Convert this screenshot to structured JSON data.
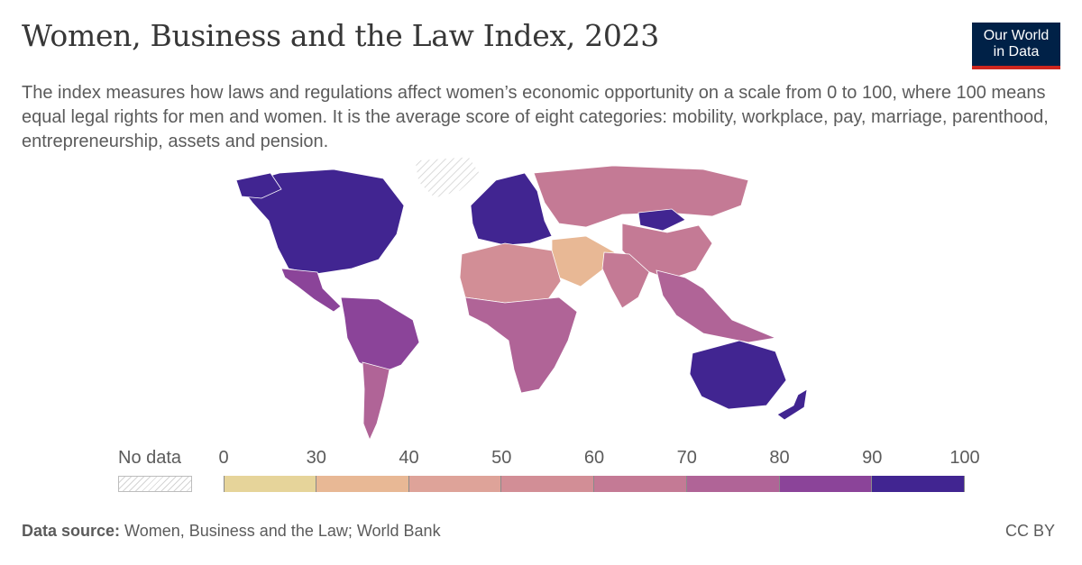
{
  "header": {
    "title": "Women, Business and the Law Index, 2023",
    "subtitle": "The index measures how laws and regulations affect women’s economic opportunity on a scale from 0 to 100, where 100 means equal legal rights for men and women. It is the average score of eight categories: mobility, workplace, pay, marriage, parenthood, entrepreneurship, assets and pension.",
    "logo_line1": "Our World",
    "logo_line2": "in Data",
    "logo_color": "#002147",
    "logo_accent": "#ce261e"
  },
  "legend": {
    "no_data_label": "No data",
    "ticks": [
      "0",
      "30",
      "40",
      "50",
      "60",
      "70",
      "80",
      "90",
      "100"
    ],
    "bins": [
      {
        "from": 0,
        "to": 30,
        "color": "#e6d49a"
      },
      {
        "from": 30,
        "to": 40,
        "color": "#e8b895"
      },
      {
        "from": 40,
        "to": 50,
        "color": "#dea399"
      },
      {
        "from": 50,
        "to": 60,
        "color": "#d28e96"
      },
      {
        "from": 60,
        "to": 70,
        "color": "#c47a95"
      },
      {
        "from": 70,
        "to": 80,
        "color": "#b06497"
      },
      {
        "from": 80,
        "to": 90,
        "color": "#8b4499"
      },
      {
        "from": 90,
        "to": 100,
        "color": "#412591"
      }
    ]
  },
  "map_regions": [
    {
      "region": "North America",
      "color": "#412591"
    },
    {
      "region": "Greenland",
      "color": "no-data"
    },
    {
      "region": "Mexico & Central America",
      "color": "#8b4499"
    },
    {
      "region": "South America North",
      "color": "#8b4499"
    },
    {
      "region": "South America South",
      "color": "#b06497"
    },
    {
      "region": "Western Europe",
      "color": "#412591"
    },
    {
      "region": "Russia & Central Asia",
      "color": "#c47a95"
    },
    {
      "region": "Mongolia",
      "color": "#412591"
    },
    {
      "region": "China",
      "color": "#c47a95"
    },
    {
      "region": "Middle East",
      "color": "#e8b895"
    },
    {
      "region": "North Africa",
      "color": "#d28e96"
    },
    {
      "region": "Sub-Saharan Africa",
      "color": "#b06497"
    },
    {
      "region": "South Asia",
      "color": "#c47a95"
    },
    {
      "region": "Southeast Asia",
      "color": "#b06497"
    },
    {
      "region": "Australia",
      "color": "#412591"
    }
  ],
  "footer": {
    "source_label": "Data source:",
    "source_text": " Women, Business and the Law; World Bank",
    "license": "CC BY"
  }
}
